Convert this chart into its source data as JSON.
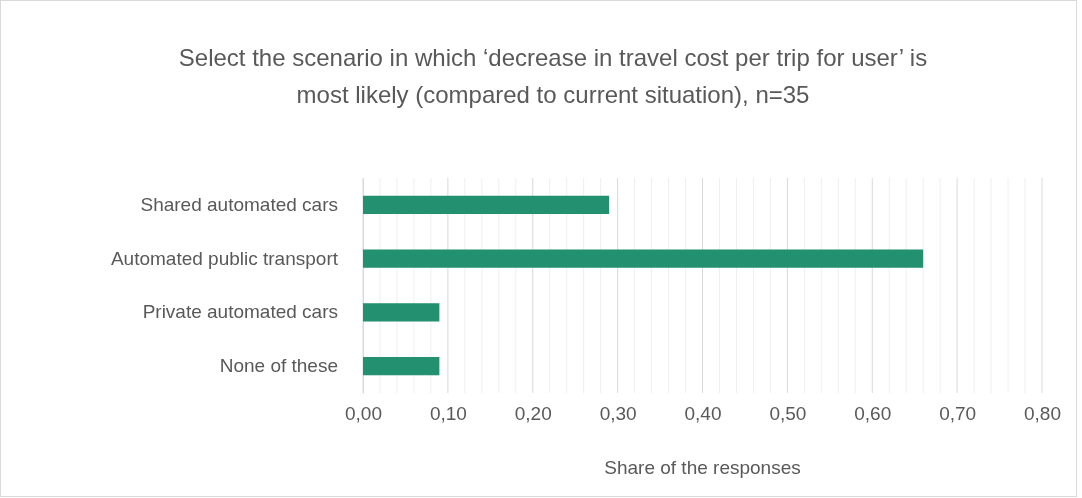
{
  "chart_data": {
    "type": "bar",
    "orientation": "horizontal",
    "title": "Select the scenario in which ‘decrease in travel cost per trip for user’ is most likely (compared to current situation), n=35",
    "xlabel": "Share of the responses",
    "categories": [
      "Shared automated cars",
      "Automated public transport",
      "Private automated cars",
      "None of these"
    ],
    "values": [
      0.29,
      0.66,
      0.09,
      0.09
    ],
    "color": "#23906f",
    "xlim": [
      0,
      0.8
    ],
    "xticks": [
      {
        "value": 0,
        "label": "0,00"
      },
      {
        "value": 0.02,
        "label": null
      },
      {
        "value": 0.04,
        "label": null
      },
      {
        "value": 0.06,
        "label": null
      },
      {
        "value": 0.08,
        "label": null
      },
      {
        "value": 0.1,
        "label": "0,10"
      },
      {
        "value": 0.12,
        "label": null
      },
      {
        "value": 0.14,
        "label": null
      },
      {
        "value": 0.16,
        "label": null
      },
      {
        "value": 0.18,
        "label": null
      },
      {
        "value": 0.2,
        "label": "0,20"
      },
      {
        "value": 0.22,
        "label": null
      },
      {
        "value": 0.24,
        "label": null
      },
      {
        "value": 0.26,
        "label": null
      },
      {
        "value": 0.28,
        "label": null
      },
      {
        "value": 0.3,
        "label": "0,30"
      },
      {
        "value": 0.32,
        "label": null
      },
      {
        "value": 0.34,
        "label": null
      },
      {
        "value": 0.36,
        "label": null
      },
      {
        "value": 0.38,
        "label": null
      },
      {
        "value": 0.4,
        "label": "0,40"
      },
      {
        "value": 0.42,
        "label": null
      },
      {
        "value": 0.44,
        "label": null
      },
      {
        "value": 0.46,
        "label": null
      },
      {
        "value": 0.48,
        "label": null
      },
      {
        "value": 0.5,
        "label": "0,50"
      },
      {
        "value": 0.52,
        "label": null
      },
      {
        "value": 0.54,
        "label": null
      },
      {
        "value": 0.56,
        "label": null
      },
      {
        "value": 0.58,
        "label": null
      },
      {
        "value": 0.6,
        "label": "0,60"
      },
      {
        "value": 0.62,
        "label": null
      },
      {
        "value": 0.64,
        "label": null
      },
      {
        "value": 0.66,
        "label": null
      },
      {
        "value": 0.68,
        "label": null
      },
      {
        "value": 0.7,
        "label": "0,70"
      },
      {
        "value": 0.72,
        "label": null
      },
      {
        "value": 0.74,
        "label": null
      },
      {
        "value": 0.76,
        "label": null
      },
      {
        "value": 0.78,
        "label": null
      },
      {
        "value": 0.8,
        "label": "0,80"
      }
    ],
    "grid": "x"
  }
}
